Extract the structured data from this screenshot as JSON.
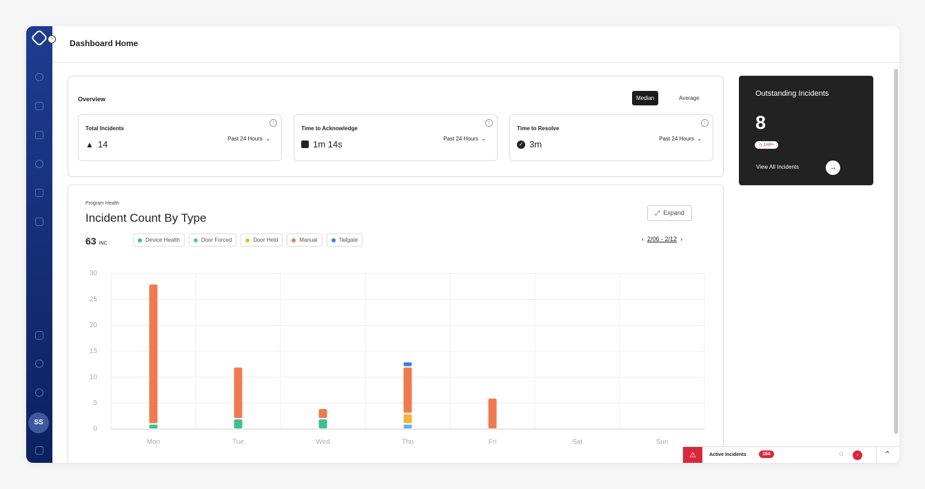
{
  "header": {
    "title": "Dashboard Home"
  },
  "sidebar": {
    "avatar": "SS"
  },
  "overview": {
    "title": "Overview",
    "toggle": [
      "Median",
      "Average"
    ],
    "metrics": [
      {
        "label": "Total Incidents",
        "value": "14",
        "period": "Past 24 Hours"
      },
      {
        "label": "Time to Acknowledge",
        "value": "1m 14s",
        "period": "Past 24 Hours"
      },
      {
        "label": "Time to Resolve",
        "value": "3m",
        "period": "Past 24 Hours"
      }
    ]
  },
  "outstanding": {
    "title": "Outstanding Incidents",
    "count": "8",
    "badge": "1HR+",
    "link": "View All Incidents"
  },
  "chart_data": {
    "type": "bar",
    "stacked": true,
    "subtitle": "Program Health",
    "title": "Incident Count By Type",
    "total": 63,
    "total_unit": "INC",
    "expand": "Expand",
    "date_range": "2/06 - 2/12",
    "categories": [
      "Mon",
      "Tue",
      "Wed",
      "Thu",
      "Fri",
      "Sat",
      "Sun"
    ],
    "series": [
      {
        "name": "Device Health",
        "color": "#3fbf8f",
        "values": [
          1,
          2,
          2,
          0,
          0,
          0,
          0
        ]
      },
      {
        "name": "Door Forced",
        "color": "#5cb6f0",
        "values": [
          0,
          0,
          0,
          1,
          0,
          0,
          0
        ]
      },
      {
        "name": "Door Held",
        "color": "#f3b43f",
        "values": [
          0,
          0,
          0,
          2,
          0,
          0,
          0
        ]
      },
      {
        "name": "Manual",
        "color": "#f07a50",
        "values": [
          27,
          10,
          2,
          9,
          6,
          0,
          0
        ]
      },
      {
        "name": "Tailgate",
        "color": "#3b7fe0",
        "values": [
          0,
          0,
          0,
          1,
          0,
          0,
          0
        ]
      }
    ],
    "ylim": [
      0,
      30
    ],
    "yticks": [
      0,
      5,
      10,
      15,
      20,
      25,
      30
    ],
    "grid": true
  },
  "footer": {
    "active_label": "Active Incidents",
    "active_count": "164",
    "chat_badge": "-"
  }
}
